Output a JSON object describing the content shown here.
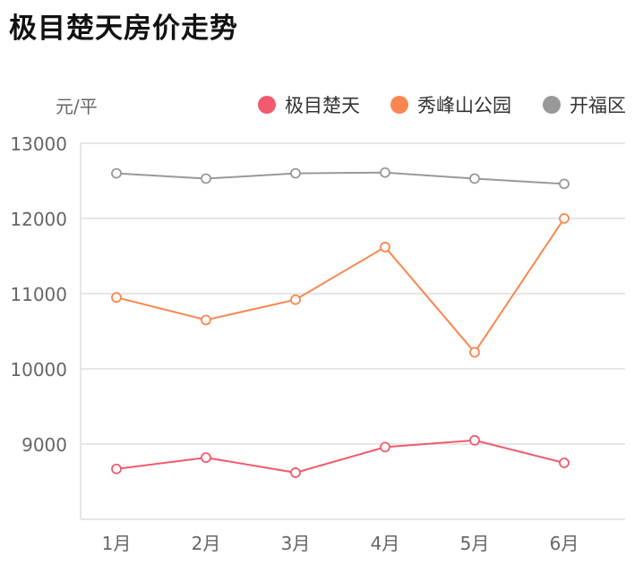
{
  "chart_data": {
    "type": "line",
    "title": "极目楚天房价走势",
    "ylabel": "元/平",
    "xlabel": "",
    "categories": [
      "1月",
      "2月",
      "3月",
      "4月",
      "5月",
      "6月"
    ],
    "ylim": [
      8000,
      13000
    ],
    "yticks": [
      "13000",
      "12000",
      "11000",
      "10000",
      "9000"
    ],
    "grid": true,
    "legend_position": "top-right",
    "series": [
      {
        "name": "极目楚天",
        "color": "#f25a6e",
        "values": [
          8670,
          8820,
          8620,
          8960,
          9050,
          8750
        ]
      },
      {
        "name": "秀峰山公园",
        "color": "#f98650",
        "values": [
          10950,
          10650,
          10920,
          11620,
          10220,
          12000
        ]
      },
      {
        "name": "开福区",
        "color": "#999999",
        "values": [
          12600,
          12530,
          12600,
          12610,
          12530,
          12460
        ]
      }
    ]
  }
}
